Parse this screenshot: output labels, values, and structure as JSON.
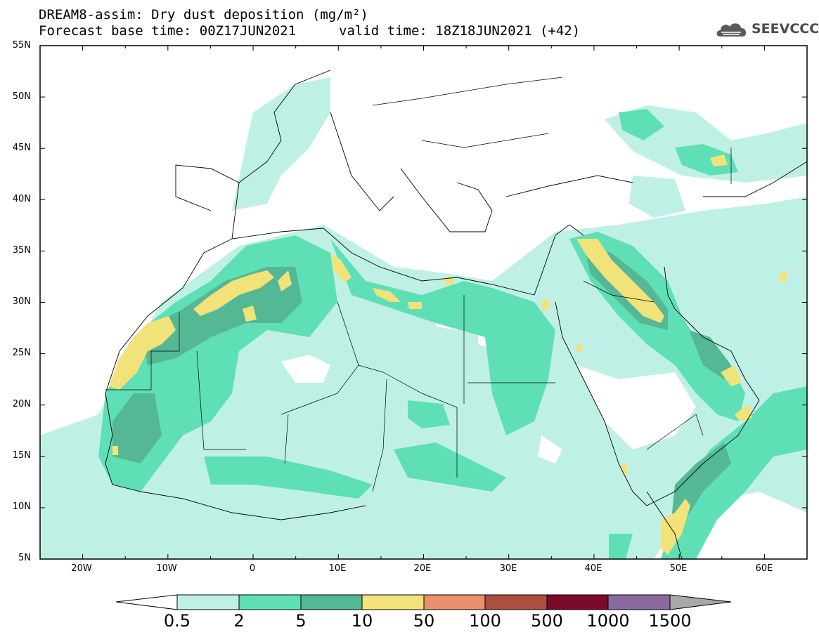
{
  "header": {
    "title_line1": "DREAM8-assim: Dry dust deposition (mg/m²)",
    "title_line2": "Forecast base time: 00Z17JUN2021",
    "valid_time": "valid time: 18Z18JUN2021 (+42)",
    "logo_text": "SEEVCCC"
  },
  "map": {
    "lon_range": [
      -25,
      65
    ],
    "lat_range": [
      5,
      55
    ],
    "lat_ticks": [
      "55N",
      "50N",
      "45N",
      "40N",
      "35N",
      "30N",
      "25N",
      "20N",
      "15N",
      "10N",
      "5N"
    ],
    "lon_ticks": [
      "20W",
      "10W",
      "0",
      "10E",
      "20E",
      "30E",
      "40E",
      "50E",
      "60E"
    ]
  },
  "colorbar": {
    "levels": [
      "0.5",
      "2",
      "5",
      "10",
      "50",
      "100",
      "500",
      "1000",
      "1500"
    ],
    "colors": [
      "#bff0e6",
      "#5fdfb6",
      "#55b895",
      "#f2e27a",
      "#e9916a",
      "#ab4f40",
      "#7c0a2b",
      "#8a6a9e",
      "#a8a8a8"
    ]
  }
}
